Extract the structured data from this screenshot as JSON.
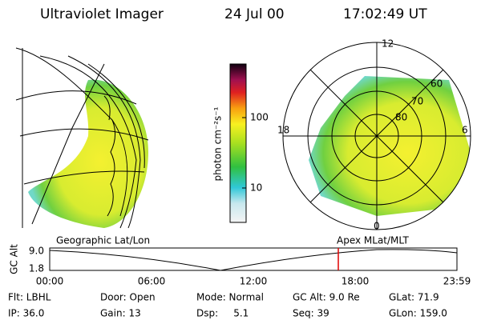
{
  "header": {
    "instrument": "Ultraviolet Imager",
    "date": "24 Jul 00",
    "time": "17:02:49 UT"
  },
  "colorbar": {
    "label": "photon cm⁻²s⁻¹",
    "ticks": [
      "100",
      "10"
    ]
  },
  "polar": {
    "mlt_labels": [
      "12",
      "18",
      "6",
      "0"
    ],
    "lat_labels": [
      "80",
      "70",
      "60"
    ]
  },
  "timeline": {
    "left_title": "Geographic Lat/Lon",
    "right_title": "Apex MLat/MLT",
    "y_label": "GC Alt",
    "y_ticks": [
      "9.0",
      "1.8"
    ],
    "x_ticks": [
      "00:00",
      "06:00",
      "12:00",
      "18:00",
      "23:59"
    ]
  },
  "status": [
    [
      "Flt: LBHL",
      "Door: Open",
      "Mode: Normal",
      "GC Alt: 9.0 Re",
      "GLat: 71.9"
    ],
    [
      "IP: 36.0",
      "Gain: 13",
      "Dsp:     5.1",
      "Seq: 39",
      "GLon: 159.0"
    ]
  ]
}
